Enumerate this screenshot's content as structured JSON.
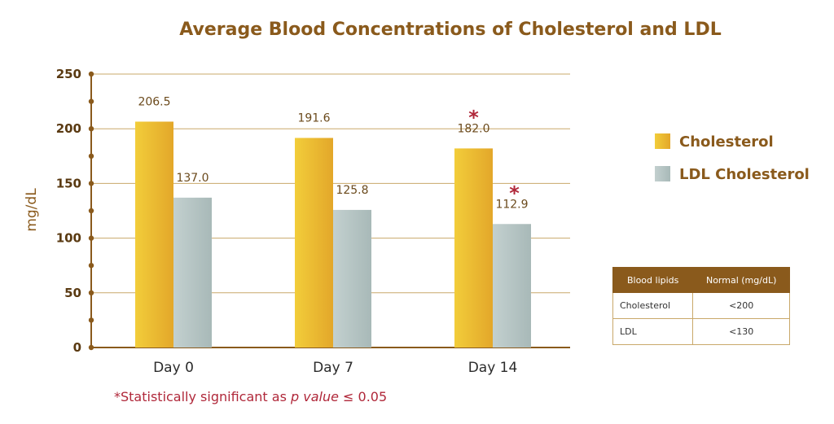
{
  "chart_data": {
    "type": "bar",
    "title": "Average Blood Concentrations of Cholesterol and LDL",
    "ylabel": "mg/dL",
    "xlabel": "",
    "ylim": [
      0,
      250
    ],
    "yticks": [
      0,
      50,
      100,
      150,
      200,
      250
    ],
    "grid": true,
    "legend_position": "right",
    "categories": [
      "Day 0",
      "Day 7",
      "Day 14"
    ],
    "series": [
      {
        "name": "Cholesterol",
        "values": [
          206.5,
          191.6,
          182.0
        ],
        "labels": [
          "206.5",
          "191.6",
          "182.0"
        ],
        "color": "#e8b92e",
        "significant": [
          false,
          false,
          true
        ]
      },
      {
        "name": "LDL Cholesterol",
        "values": [
          137.0,
          125.8,
          112.9
        ],
        "labels": [
          "137.0",
          "125.8",
          "112.9"
        ],
        "color": "#b4c3c3",
        "significant": [
          false,
          false,
          true
        ]
      }
    ],
    "significance_marker": "*",
    "colors": {
      "title": "#8a5a1c",
      "axis": "#8a5a1c",
      "significance": "#b0283a"
    }
  },
  "footnote": {
    "prefix": "*Statistically significant as ",
    "italic": "p value",
    "suffix": " ≤ 0.05"
  },
  "reference_table": {
    "headers": [
      "Blood lipids",
      "Normal (mg/dL)"
    ],
    "rows": [
      [
        "Cholesterol",
        "<200"
      ],
      [
        "LDL",
        "<130"
      ]
    ]
  }
}
